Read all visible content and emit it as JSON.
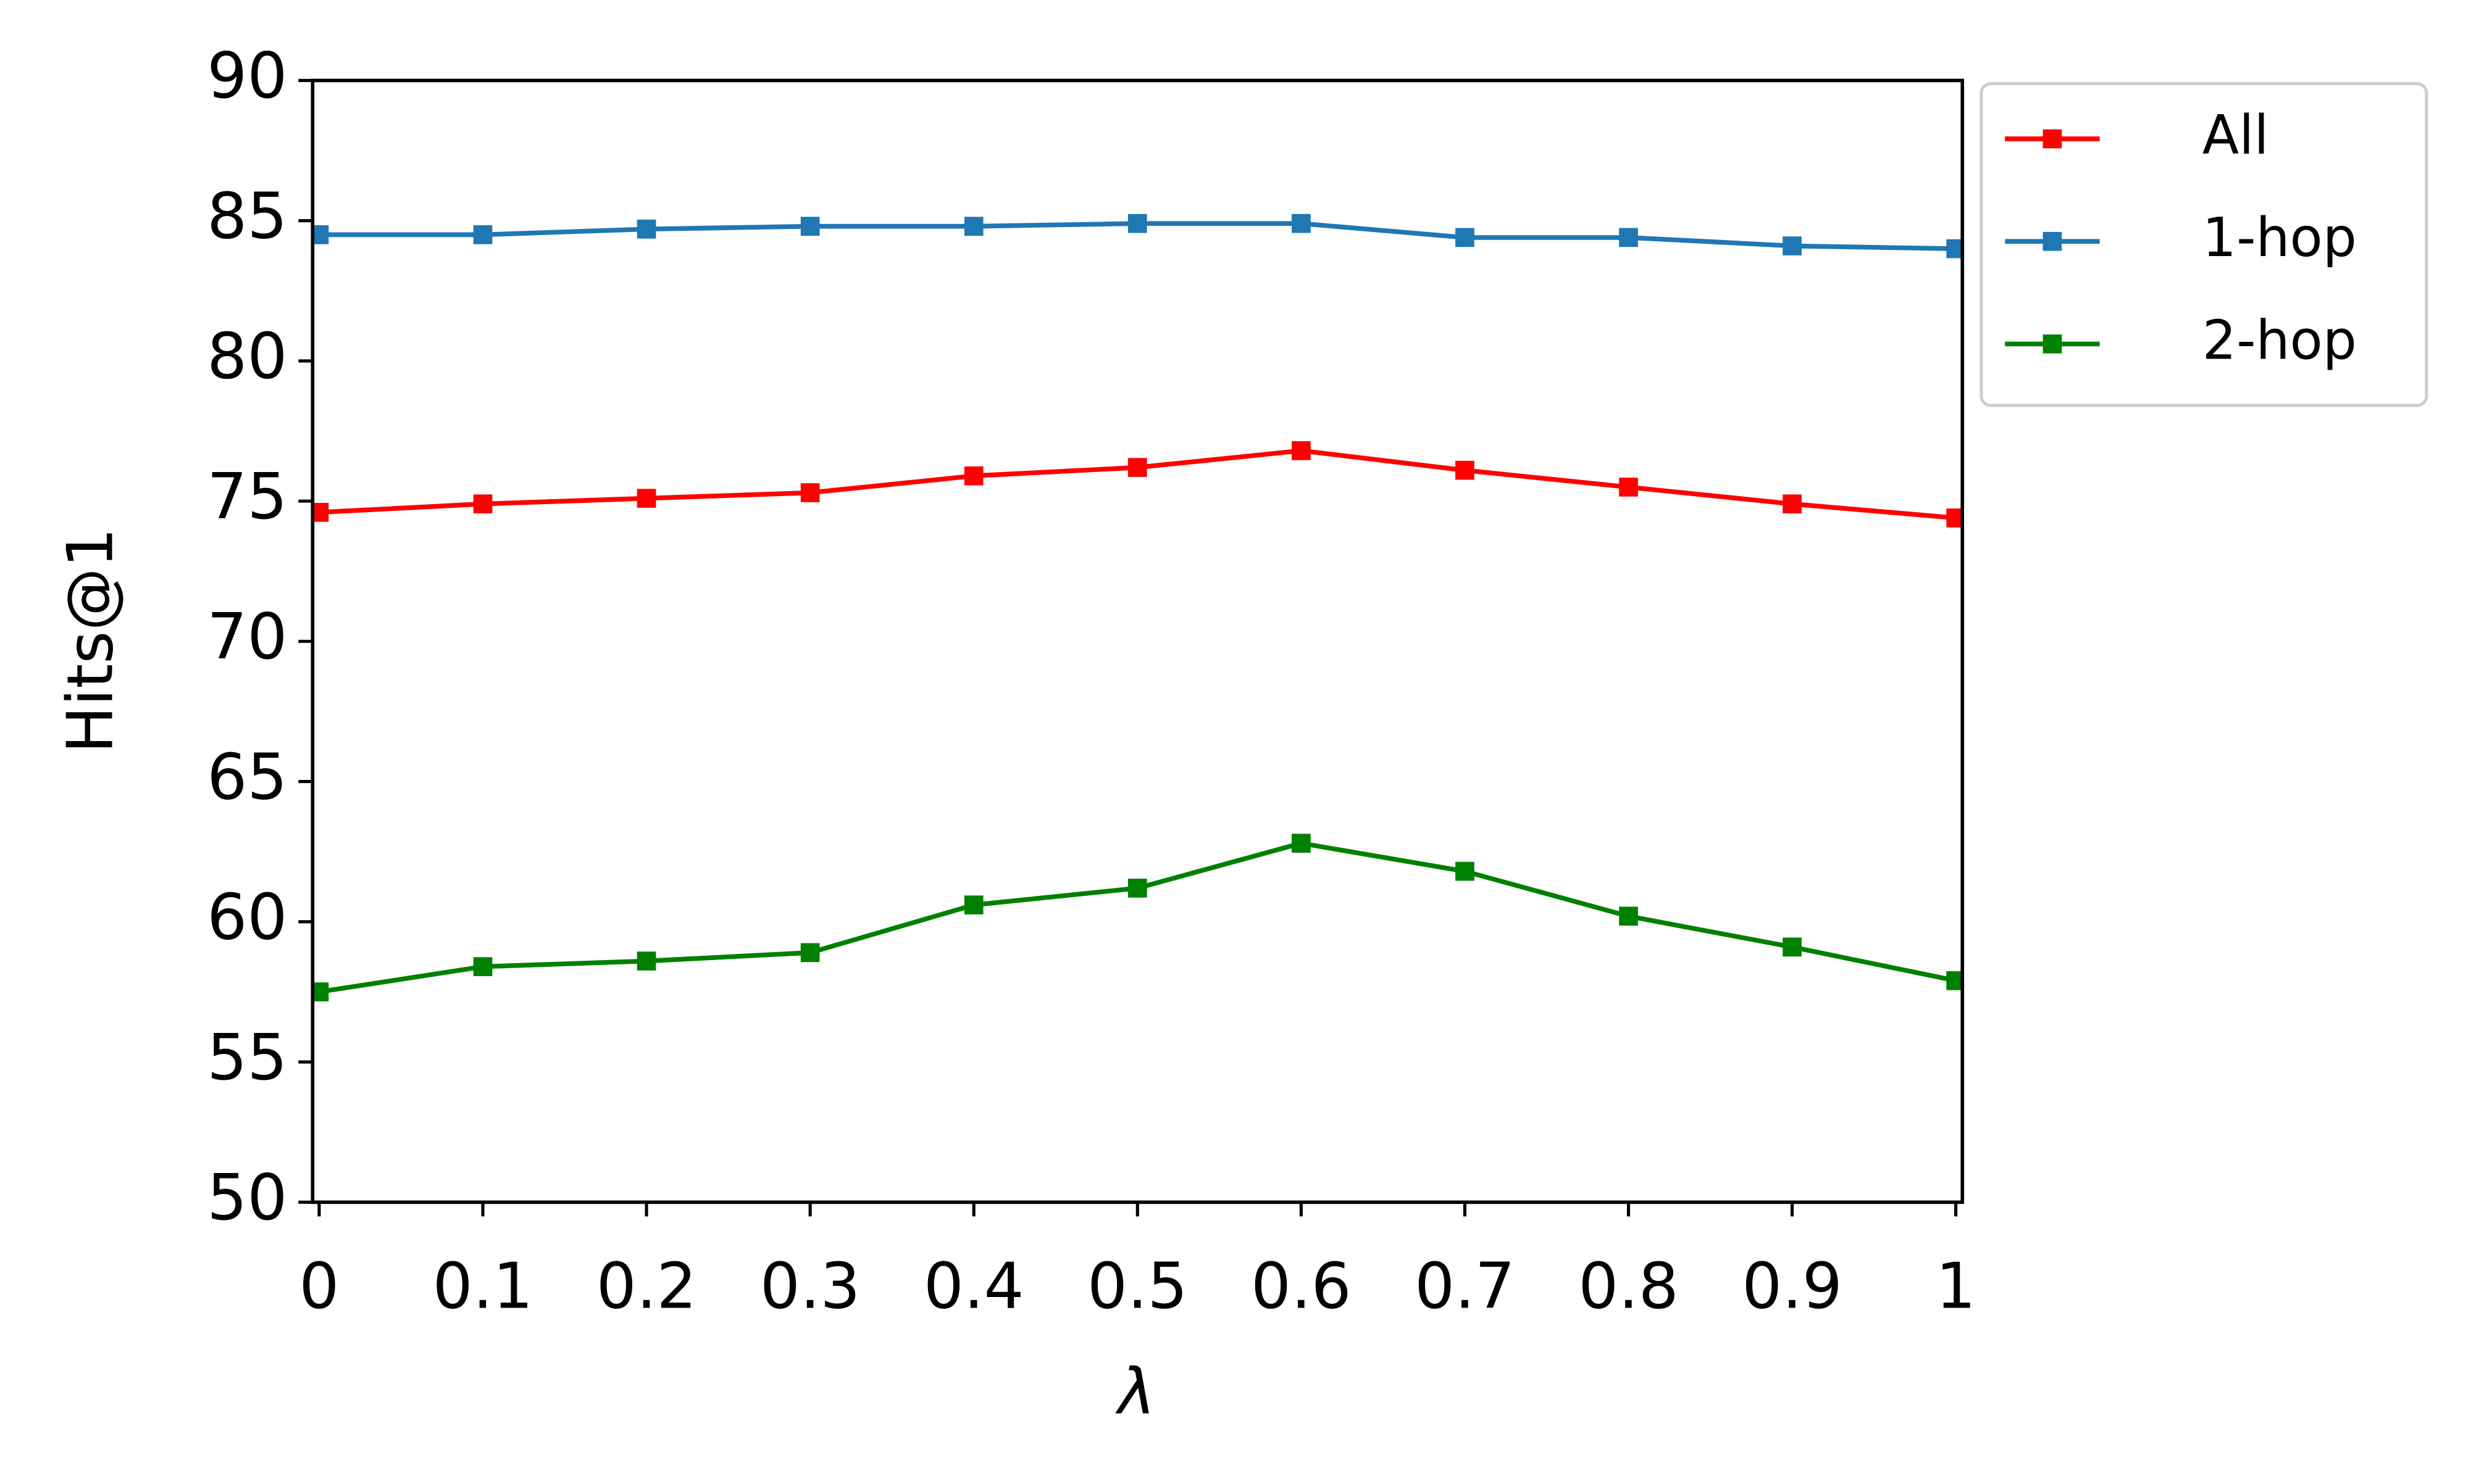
{
  "chart_data": {
    "type": "line",
    "x": [
      0,
      0.1,
      0.2,
      0.3,
      0.4,
      0.5,
      0.6,
      0.7,
      0.8,
      0.9,
      1
    ],
    "series": [
      {
        "name": "All",
        "color": "#ff0000",
        "values": [
          74.6,
          74.9,
          75.1,
          75.3,
          75.9,
          76.2,
          76.8,
          76.1,
          75.5,
          74.9,
          74.4
        ]
      },
      {
        "name": "1-hop",
        "color": "#1f77b4",
        "values": [
          84.5,
          84.5,
          84.7,
          84.8,
          84.8,
          84.9,
          84.9,
          84.4,
          84.4,
          84.1,
          84.0
        ]
      },
      {
        "name": "2-hop",
        "color": "#008000",
        "values": [
          57.5,
          58.4,
          58.6,
          58.9,
          60.6,
          61.2,
          62.8,
          61.8,
          60.2,
          59.1,
          57.9
        ]
      }
    ],
    "xlabel": "λ",
    "ylabel": "Hits@1",
    "xlim": [
      -0.004,
      1.004
    ],
    "xticks": [
      0,
      0.1,
      0.2,
      0.3,
      0.4,
      0.5,
      0.6,
      0.7,
      0.8,
      0.9,
      1
    ],
    "ylim": [
      50,
      90
    ],
    "yticks": [
      50,
      55,
      60,
      65,
      70,
      75,
      80,
      85,
      90
    ],
    "legend": "outside upper right",
    "marker": "square",
    "grid": false
  }
}
